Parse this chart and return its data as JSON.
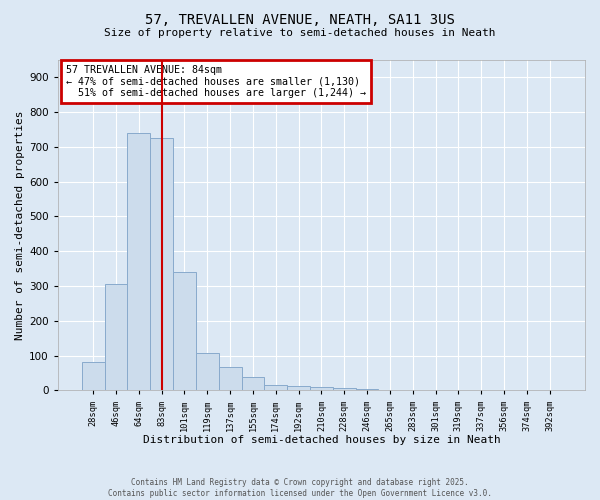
{
  "title_line1": "57, TREVALLEN AVENUE, NEATH, SA11 3US",
  "title_line2": "Size of property relative to semi-detached houses in Neath",
  "xlabel": "Distribution of semi-detached houses by size in Neath",
  "ylabel": "Number of semi-detached properties",
  "categories": [
    "28sqm",
    "46sqm",
    "64sqm",
    "83sqm",
    "101sqm",
    "119sqm",
    "137sqm",
    "155sqm",
    "174sqm",
    "192sqm",
    "210sqm",
    "228sqm",
    "246sqm",
    "265sqm",
    "283sqm",
    "301sqm",
    "319sqm",
    "337sqm",
    "356sqm",
    "374sqm",
    "392sqm"
  ],
  "values": [
    80,
    307,
    740,
    725,
    340,
    107,
    68,
    38,
    14,
    11,
    10,
    6,
    5,
    0,
    0,
    0,
    0,
    0,
    0,
    0,
    0
  ],
  "bar_color": "#ccdcec",
  "bar_edgecolor": "#88aacc",
  "red_line_x": 3.5,
  "annotation_text_line1": "57 TREVALLEN AVENUE: 84sqm",
  "annotation_text_line2": "← 47% of semi-detached houses are smaller (1,130)",
  "annotation_text_line3": "  51% of semi-detached houses are larger (1,244) →",
  "annotation_box_color": "#ffffff",
  "annotation_box_edgecolor": "#cc0000",
  "ylim": [
    0,
    950
  ],
  "yticks": [
    0,
    100,
    200,
    300,
    400,
    500,
    600,
    700,
    800,
    900
  ],
  "background_color": "#dce8f4",
  "plot_background": "#dce8f4",
  "grid_color": "#ffffff",
  "footer_line1": "Contains HM Land Registry data © Crown copyright and database right 2025.",
  "footer_line2": "Contains public sector information licensed under the Open Government Licence v3.0."
}
